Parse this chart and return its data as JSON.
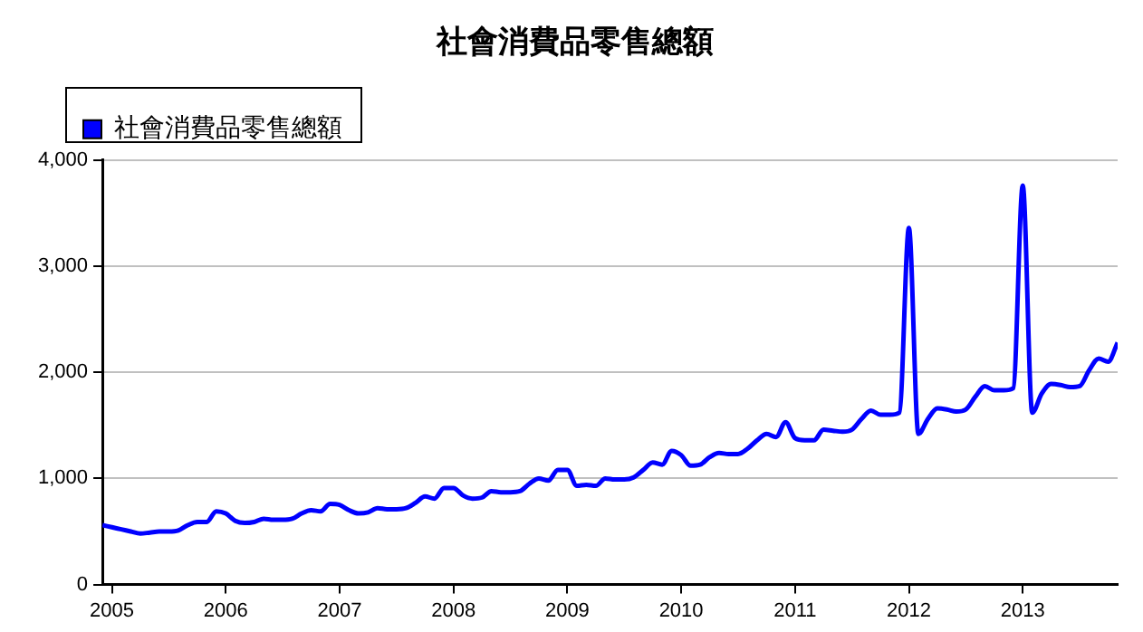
{
  "chart_data": {
    "type": "line",
    "title": "社會消費品零售總額",
    "legend": "top left",
    "grid": "y",
    "marker": "none",
    "line_style": "solid",
    "xlim": [
      "2004-12",
      "2013-11"
    ],
    "xticks": [
      "2005",
      "2006",
      "2007",
      "2008",
      "2009",
      "2010",
      "2011",
      "2012",
      "2013"
    ],
    "ylim": [
      0,
      4000
    ],
    "yticks": [
      {
        "value": 0,
        "label": "0"
      },
      {
        "value": 1000,
        "label": "1,000"
      },
      {
        "value": 2000,
        "label": "2,000"
      },
      {
        "value": 3000,
        "label": "3,000"
      },
      {
        "value": 4000,
        "label": "4,000"
      }
    ],
    "x": [
      "2004-12",
      "2005-01",
      "2005-02",
      "2005-03",
      "2005-04",
      "2005-05",
      "2005-06",
      "2005-07",
      "2005-08",
      "2005-09",
      "2005-10",
      "2005-11",
      "2005-12",
      "2006-01",
      "2006-02",
      "2006-03",
      "2006-04",
      "2006-05",
      "2006-06",
      "2006-07",
      "2006-08",
      "2006-09",
      "2006-10",
      "2006-11",
      "2006-12",
      "2007-01",
      "2007-02",
      "2007-03",
      "2007-04",
      "2007-05",
      "2007-06",
      "2007-07",
      "2007-08",
      "2007-09",
      "2007-10",
      "2007-11",
      "2007-12",
      "2008-01",
      "2008-02",
      "2008-03",
      "2008-04",
      "2008-05",
      "2008-06",
      "2008-07",
      "2008-08",
      "2008-09",
      "2008-10",
      "2008-11",
      "2008-12",
      "2009-01",
      "2009-02",
      "2009-03",
      "2009-04",
      "2009-05",
      "2009-06",
      "2009-07",
      "2009-08",
      "2009-09",
      "2009-10",
      "2009-11",
      "2009-12",
      "2010-01",
      "2010-02",
      "2010-03",
      "2010-04",
      "2010-05",
      "2010-06",
      "2010-07",
      "2010-08",
      "2010-09",
      "2010-10",
      "2010-11",
      "2010-12",
      "2011-01",
      "2011-02",
      "2011-03",
      "2011-04",
      "2011-05",
      "2011-06",
      "2011-07",
      "2011-08",
      "2011-09",
      "2011-10",
      "2011-11",
      "2011-12",
      "2012-01",
      "2012-02",
      "2012-03",
      "2012-04",
      "2012-05",
      "2012-06",
      "2012-07",
      "2012-08",
      "2012-09",
      "2012-10",
      "2012-11",
      "2012-12",
      "2013-01",
      "2013-02",
      "2013-03",
      "2013-04",
      "2013-05",
      "2013-06",
      "2013-07",
      "2013-08",
      "2013-09",
      "2013-10",
      "2013-11"
    ],
    "series": [
      {
        "name": "社會消費品零售總額",
        "color": "#0000ff",
        "values": [
          560,
          540,
          520,
          500,
          480,
          490,
          500,
          500,
          510,
          560,
          590,
          590,
          690,
          670,
          600,
          580,
          590,
          620,
          610,
          610,
          620,
          670,
          700,
          690,
          760,
          750,
          700,
          670,
          680,
          720,
          710,
          710,
          720,
          770,
          830,
          810,
          910,
          910,
          840,
          810,
          820,
          880,
          870,
          870,
          880,
          950,
          1000,
          980,
          1080,
          1080,
          930,
          940,
          930,
          1000,
          990,
          990,
          1010,
          1080,
          1150,
          1130,
          1260,
          1220,
          1120,
          1130,
          1200,
          1240,
          1230,
          1230,
          1280,
          1360,
          1420,
          1390,
          1530,
          1380,
          1360,
          1360,
          1460,
          1450,
          1440,
          1460,
          1560,
          1640,
          1600,
          1600,
          1620,
          3360,
          1420,
          1560,
          1660,
          1650,
          1630,
          1650,
          1770,
          1870,
          1830,
          1830,
          1850,
          3760,
          1620,
          1800,
          1890,
          1880,
          1860,
          1870,
          2020,
          2130,
          2100,
          2280
        ]
      }
    ]
  }
}
